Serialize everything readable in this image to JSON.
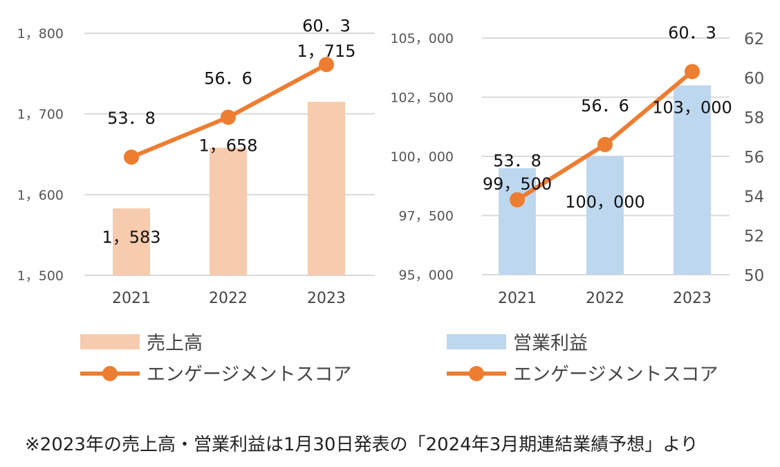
{
  "chart_data": [
    {
      "type": "bar+line",
      "categories": [
        "2021",
        "2022",
        "2023"
      ],
      "bar_series": {
        "name": "売上高",
        "values": [
          1583,
          1658,
          1715
        ],
        "labels": [
          "1，583",
          "1，658",
          "1，715"
        ],
        "color": "#f7cbad"
      },
      "line_series": {
        "name": "エンゲージメントスコア",
        "values": [
          53.8,
          56.6,
          60.3
        ],
        "labels": [
          "53．8",
          "56．6",
          "60．3"
        ],
        "color": "#ed7d31"
      },
      "y_left": {
        "min": 1500,
        "max": 1800,
        "ticks": [
          1500,
          1600,
          1700,
          1800
        ],
        "tick_labels": [
          "1，500",
          "1，600",
          "1，700",
          "1，800"
        ]
      },
      "y_right_hidden": {
        "min": 45.5,
        "max": 62.5
      },
      "grid": true,
      "legend_position": "bottom"
    },
    {
      "type": "bar+line",
      "categories": [
        "2021",
        "2022",
        "2023"
      ],
      "bar_series": {
        "name": "営業利益",
        "values": [
          99500,
          100000,
          103000
        ],
        "labels": [
          "99，500",
          "100，000",
          "103，000"
        ],
        "color": "#bdd7ee"
      },
      "line_series": {
        "name": "エンゲージメントスコア",
        "values": [
          53.8,
          56.6,
          60.3
        ],
        "labels": [
          "53．8",
          "56．6",
          "60．3"
        ],
        "color": "#ed7d31"
      },
      "y_left": {
        "min": 95000,
        "max": 105000,
        "ticks": [
          95000,
          97500,
          100000,
          102500,
          105000
        ],
        "tick_labels": [
          "95，000",
          "97，500",
          "100，000",
          "102，500",
          "105，000"
        ]
      },
      "y_right": {
        "min": 50,
        "max": 62,
        "ticks": [
          50,
          52,
          54,
          56,
          58,
          60,
          62
        ],
        "tick_labels": [
          "50",
          "52",
          "54",
          "56",
          "58",
          "60",
          "62"
        ]
      },
      "grid": true,
      "legend_position": "bottom"
    }
  ],
  "footnote": "※2023年の売上高・営業利益は1月30日発表の「2024年3月期連結業績予想」より"
}
